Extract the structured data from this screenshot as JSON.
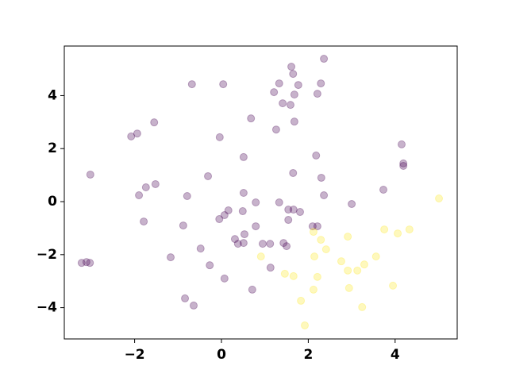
{
  "chart_data": {
    "type": "scatter",
    "series": [
      {
        "color": "#440154",
        "x": [
          2.36,
          1.61,
          1.65,
          -0.68,
          0.04,
          1.33,
          2.29,
          1.77,
          1.21,
          1.68,
          2.21,
          1.41,
          1.59,
          0.68,
          1.68,
          -1.55,
          -1.94,
          -2.08,
          -0.04,
          1.26,
          4.15,
          2.18,
          0.51,
          4.19,
          4.19,
          -3.02,
          1.65,
          -0.31,
          2.3,
          -1.52,
          -1.74,
          3.73,
          0.51,
          2.36,
          -0.79,
          -1.9,
          0.79,
          1.33,
          3.0,
          1.54,
          1.66,
          1.81,
          0.16,
          0.49,
          0.07,
          -0.05,
          1.54,
          -1.79,
          2.21,
          2.1,
          0.79,
          -0.88,
          0.53,
          0.31,
          0.38,
          0.51,
          0.95,
          1.12,
          1.43,
          1.5,
          -0.48,
          -1.17,
          -3.22,
          -3.11,
          -3.03,
          -0.27,
          1.13,
          0.07,
          0.71,
          -0.84,
          -0.64
        ],
        "y": [
          5.39,
          5.09,
          4.82,
          4.43,
          4.43,
          4.46,
          4.46,
          4.4,
          4.13,
          4.04,
          4.07,
          3.71,
          3.65,
          3.14,
          3.02,
          2.99,
          2.57,
          2.46,
          2.43,
          2.72,
          2.16,
          1.74,
          1.68,
          1.44,
          1.35,
          1.02,
          1.08,
          0.96,
          0.9,
          0.66,
          0.54,
          0.45,
          0.33,
          0.24,
          0.21,
          0.24,
          -0.03,
          -0.03,
          -0.09,
          -0.3,
          -0.3,
          -0.39,
          -0.33,
          -0.36,
          -0.51,
          -0.66,
          -0.69,
          -0.75,
          -0.93,
          -0.93,
          -0.93,
          -0.9,
          -1.23,
          -1.41,
          -1.59,
          -1.56,
          -1.59,
          -1.59,
          -1.56,
          -1.68,
          -1.77,
          -2.1,
          -2.31,
          -2.28,
          -2.31,
          -2.4,
          -2.49,
          -2.9,
          -3.32,
          -3.65,
          -3.92
        ]
      },
      {
        "color": "#fde725",
        "x": [
          5.01,
          3.75,
          4.33,
          4.06,
          2.12,
          2.29,
          2.91,
          2.41,
          0.91,
          2.14,
          3.56,
          2.76,
          3.29,
          2.91,
          3.13,
          1.46,
          1.66,
          2.21,
          3.95,
          2.94,
          2.12,
          1.83,
          3.24,
          1.92
        ],
        "y": [
          0.12,
          -1.05,
          -1.05,
          -1.2,
          -1.14,
          -1.44,
          -1.32,
          -1.8,
          -2.07,
          -2.07,
          -2.07,
          -2.25,
          -2.37,
          -2.6,
          -2.6,
          -2.72,
          -2.81,
          -2.84,
          -3.17,
          -3.26,
          -3.32,
          -3.74,
          -3.98,
          -4.67
        ]
      }
    ],
    "alpha": 0.3,
    "xlim": [
      -3.62,
      5.43
    ],
    "ylim": [
      -5.18,
      5.87
    ],
    "xticks": [
      {
        "value": -2,
        "label": "−2"
      },
      0,
      2,
      4
    ],
    "yticks": [
      {
        "value": -4,
        "label": "−4"
      },
      {
        "value": -2,
        "label": "−2"
      },
      0,
      2,
      4
    ]
  }
}
